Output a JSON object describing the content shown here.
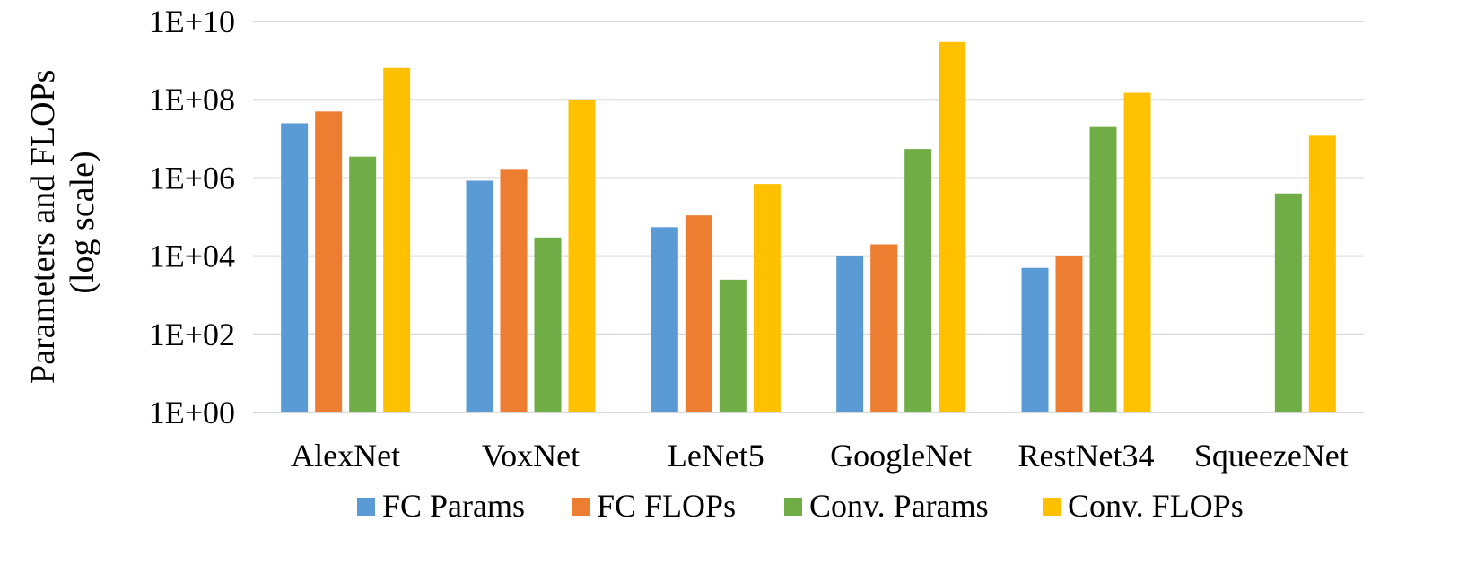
{
  "chart_data": {
    "type": "bar",
    "title": "",
    "xlabel": "",
    "ylabel_lines": [
      "Parameters and FLOPs",
      "(log scale)"
    ],
    "yscale": "log10",
    "ylim": [
      1,
      10000000000
    ],
    "yticks": [
      1,
      100,
      10000,
      1000000,
      100000000,
      10000000000
    ],
    "ytick_labels": [
      "1E+00",
      "1E+02",
      "1E+04",
      "1E+06",
      "1E+08",
      "1E+10"
    ],
    "grid": true,
    "legend_position": "bottom",
    "categories": [
      "AlexNet",
      "VoxNet",
      "LeNet5",
      "GoogleNet",
      "RestNet34",
      "SqueezeNet"
    ],
    "series": [
      {
        "name": "FC Params",
        "color": "#5b9bd5",
        "values": [
          25000000,
          850000,
          55000,
          10000,
          5000,
          null
        ]
      },
      {
        "name": "FC FLOPs",
        "color": "#ed7d31",
        "values": [
          50000000,
          1700000,
          110000,
          20000,
          10000,
          null
        ]
      },
      {
        "name": "Conv. Params",
        "color": "#70ad47",
        "values": [
          3500000,
          30000,
          2500,
          5500000,
          20000000,
          400000
        ]
      },
      {
        "name": "Conv. FLOPs",
        "color": "#ffc000",
        "values": [
          650000000,
          100000000,
          700000,
          3000000000,
          150000000,
          12000000
        ]
      }
    ]
  }
}
